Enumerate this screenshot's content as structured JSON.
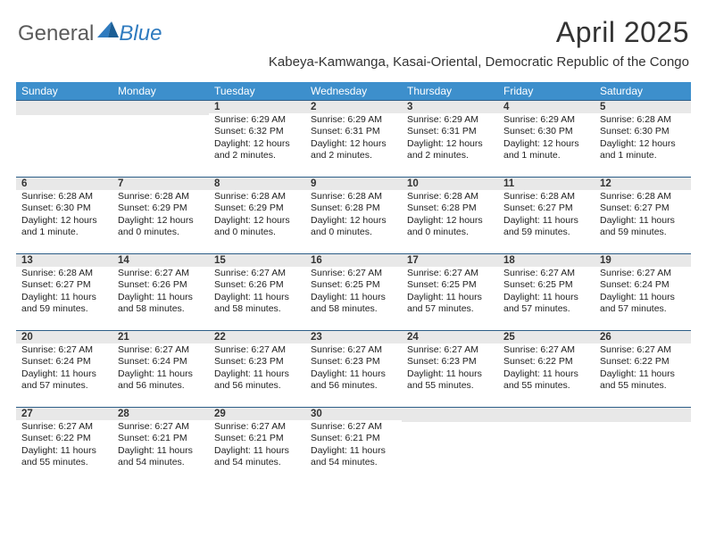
{
  "brand": {
    "part1": "General",
    "part2": "Blue"
  },
  "title": "April 2025",
  "location": "Kabeya-Kamwanga, Kasai-Oriental, Democratic Republic of the Congo",
  "colors": {
    "header_bg": "#3d8fcc",
    "header_text": "#ffffff",
    "daynum_bg": "#e8e8e8",
    "daynum_border": "#2c5d87",
    "logo_gray": "#5a5a5a",
    "logo_blue": "#2f7bbf",
    "text": "#222222",
    "background": "#ffffff"
  },
  "weekdays": [
    "Sunday",
    "Monday",
    "Tuesday",
    "Wednesday",
    "Thursday",
    "Friday",
    "Saturday"
  ],
  "weeks": [
    [
      {
        "blank": true
      },
      {
        "blank": true
      },
      {
        "num": "1",
        "sunrise": "Sunrise: 6:29 AM",
        "sunset": "Sunset: 6:32 PM",
        "daylight": "Daylight: 12 hours and 2 minutes."
      },
      {
        "num": "2",
        "sunrise": "Sunrise: 6:29 AM",
        "sunset": "Sunset: 6:31 PM",
        "daylight": "Daylight: 12 hours and 2 minutes."
      },
      {
        "num": "3",
        "sunrise": "Sunrise: 6:29 AM",
        "sunset": "Sunset: 6:31 PM",
        "daylight": "Daylight: 12 hours and 2 minutes."
      },
      {
        "num": "4",
        "sunrise": "Sunrise: 6:29 AM",
        "sunset": "Sunset: 6:30 PM",
        "daylight": "Daylight: 12 hours and 1 minute."
      },
      {
        "num": "5",
        "sunrise": "Sunrise: 6:28 AM",
        "sunset": "Sunset: 6:30 PM",
        "daylight": "Daylight: 12 hours and 1 minute."
      }
    ],
    [
      {
        "num": "6",
        "sunrise": "Sunrise: 6:28 AM",
        "sunset": "Sunset: 6:30 PM",
        "daylight": "Daylight: 12 hours and 1 minute."
      },
      {
        "num": "7",
        "sunrise": "Sunrise: 6:28 AM",
        "sunset": "Sunset: 6:29 PM",
        "daylight": "Daylight: 12 hours and 0 minutes."
      },
      {
        "num": "8",
        "sunrise": "Sunrise: 6:28 AM",
        "sunset": "Sunset: 6:29 PM",
        "daylight": "Daylight: 12 hours and 0 minutes."
      },
      {
        "num": "9",
        "sunrise": "Sunrise: 6:28 AM",
        "sunset": "Sunset: 6:28 PM",
        "daylight": "Daylight: 12 hours and 0 minutes."
      },
      {
        "num": "10",
        "sunrise": "Sunrise: 6:28 AM",
        "sunset": "Sunset: 6:28 PM",
        "daylight": "Daylight: 12 hours and 0 minutes."
      },
      {
        "num": "11",
        "sunrise": "Sunrise: 6:28 AM",
        "sunset": "Sunset: 6:27 PM",
        "daylight": "Daylight: 11 hours and 59 minutes."
      },
      {
        "num": "12",
        "sunrise": "Sunrise: 6:28 AM",
        "sunset": "Sunset: 6:27 PM",
        "daylight": "Daylight: 11 hours and 59 minutes."
      }
    ],
    [
      {
        "num": "13",
        "sunrise": "Sunrise: 6:28 AM",
        "sunset": "Sunset: 6:27 PM",
        "daylight": "Daylight: 11 hours and 59 minutes."
      },
      {
        "num": "14",
        "sunrise": "Sunrise: 6:27 AM",
        "sunset": "Sunset: 6:26 PM",
        "daylight": "Daylight: 11 hours and 58 minutes."
      },
      {
        "num": "15",
        "sunrise": "Sunrise: 6:27 AM",
        "sunset": "Sunset: 6:26 PM",
        "daylight": "Daylight: 11 hours and 58 minutes."
      },
      {
        "num": "16",
        "sunrise": "Sunrise: 6:27 AM",
        "sunset": "Sunset: 6:25 PM",
        "daylight": "Daylight: 11 hours and 58 minutes."
      },
      {
        "num": "17",
        "sunrise": "Sunrise: 6:27 AM",
        "sunset": "Sunset: 6:25 PM",
        "daylight": "Daylight: 11 hours and 57 minutes."
      },
      {
        "num": "18",
        "sunrise": "Sunrise: 6:27 AM",
        "sunset": "Sunset: 6:25 PM",
        "daylight": "Daylight: 11 hours and 57 minutes."
      },
      {
        "num": "19",
        "sunrise": "Sunrise: 6:27 AM",
        "sunset": "Sunset: 6:24 PM",
        "daylight": "Daylight: 11 hours and 57 minutes."
      }
    ],
    [
      {
        "num": "20",
        "sunrise": "Sunrise: 6:27 AM",
        "sunset": "Sunset: 6:24 PM",
        "daylight": "Daylight: 11 hours and 57 minutes."
      },
      {
        "num": "21",
        "sunrise": "Sunrise: 6:27 AM",
        "sunset": "Sunset: 6:24 PM",
        "daylight": "Daylight: 11 hours and 56 minutes."
      },
      {
        "num": "22",
        "sunrise": "Sunrise: 6:27 AM",
        "sunset": "Sunset: 6:23 PM",
        "daylight": "Daylight: 11 hours and 56 minutes."
      },
      {
        "num": "23",
        "sunrise": "Sunrise: 6:27 AM",
        "sunset": "Sunset: 6:23 PM",
        "daylight": "Daylight: 11 hours and 56 minutes."
      },
      {
        "num": "24",
        "sunrise": "Sunrise: 6:27 AM",
        "sunset": "Sunset: 6:23 PM",
        "daylight": "Daylight: 11 hours and 55 minutes."
      },
      {
        "num": "25",
        "sunrise": "Sunrise: 6:27 AM",
        "sunset": "Sunset: 6:22 PM",
        "daylight": "Daylight: 11 hours and 55 minutes."
      },
      {
        "num": "26",
        "sunrise": "Sunrise: 6:27 AM",
        "sunset": "Sunset: 6:22 PM",
        "daylight": "Daylight: 11 hours and 55 minutes."
      }
    ],
    [
      {
        "num": "27",
        "sunrise": "Sunrise: 6:27 AM",
        "sunset": "Sunset: 6:22 PM",
        "daylight": "Daylight: 11 hours and 55 minutes."
      },
      {
        "num": "28",
        "sunrise": "Sunrise: 6:27 AM",
        "sunset": "Sunset: 6:21 PM",
        "daylight": "Daylight: 11 hours and 54 minutes."
      },
      {
        "num": "29",
        "sunrise": "Sunrise: 6:27 AM",
        "sunset": "Sunset: 6:21 PM",
        "daylight": "Daylight: 11 hours and 54 minutes."
      },
      {
        "num": "30",
        "sunrise": "Sunrise: 6:27 AM",
        "sunset": "Sunset: 6:21 PM",
        "daylight": "Daylight: 11 hours and 54 minutes."
      },
      {
        "blank": true
      },
      {
        "blank": true
      },
      {
        "blank": true
      }
    ]
  ]
}
